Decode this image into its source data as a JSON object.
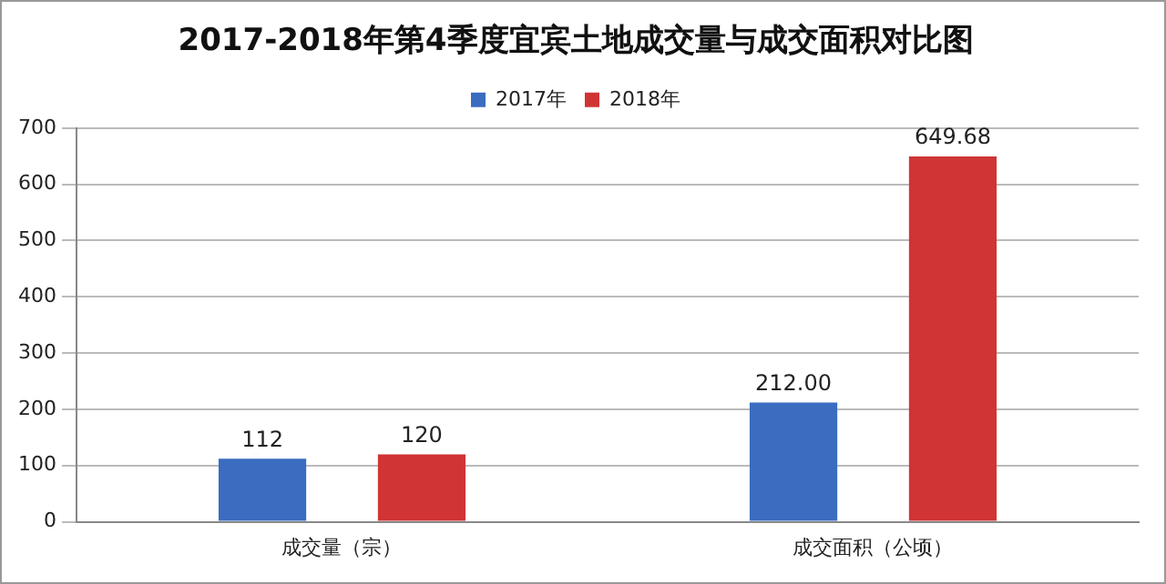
{
  "chart_data": {
    "type": "bar",
    "title": "2017-2018年第4季度宜宾土地成交量与成交面积对比图",
    "categories": [
      "成交量（宗）",
      "成交面积（公顷）"
    ],
    "series": [
      {
        "name": "2017年",
        "color": "#3a6cc0",
        "values": [
          112,
          212
        ],
        "value_labels": [
          "112",
          "212.00"
        ]
      },
      {
        "name": "2018年",
        "color": "#d03434",
        "values": [
          120,
          649.68
        ],
        "value_labels": [
          "120",
          "649.68"
        ]
      }
    ],
    "ylim": [
      0,
      700
    ],
    "yticks": [
      0,
      100,
      200,
      300,
      400,
      500,
      600,
      700
    ],
    "grid": "y",
    "legend": "top"
  }
}
